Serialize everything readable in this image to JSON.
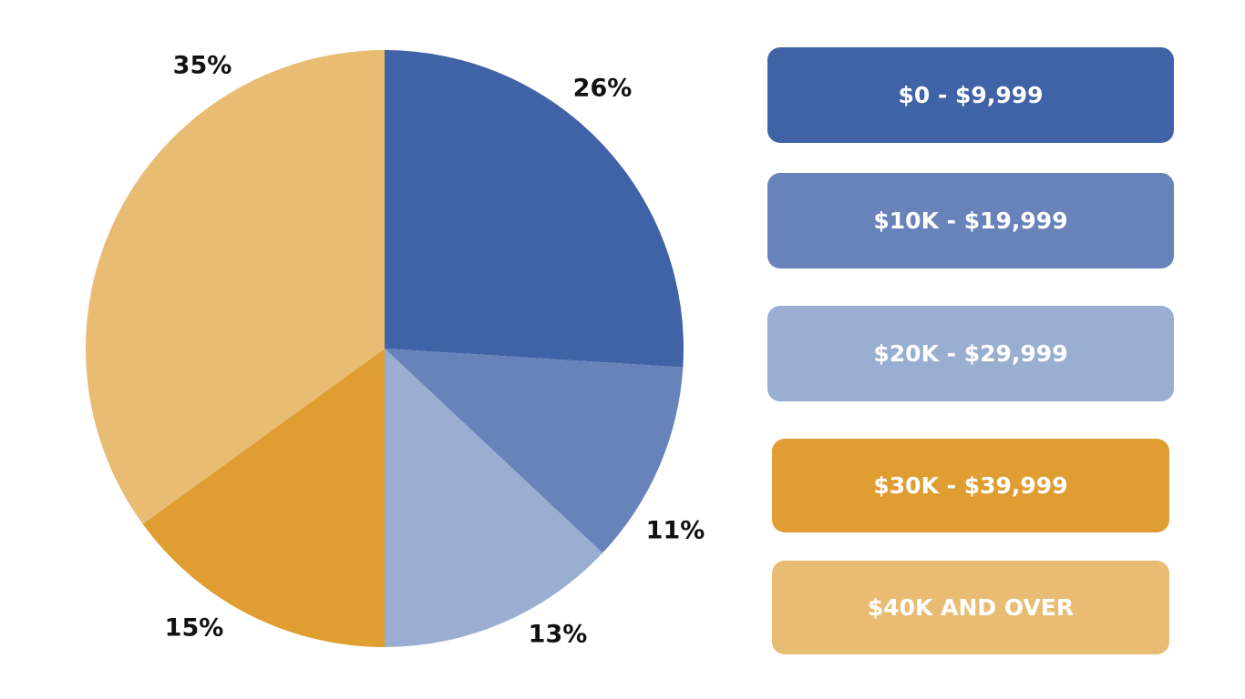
{
  "chart_data": {
    "type": "pie",
    "title": "",
    "start": "top",
    "direction": "clockwise",
    "legend_placement": "right",
    "slices": [
      {
        "label": "$0 - $9,999",
        "value": 26,
        "value_label": "26%",
        "color": "#4062a6"
      },
      {
        "label": "$10K - $19,999",
        "value": 11,
        "value_label": "11%",
        "color": "#6883ba"
      },
      {
        "label": "$20K - $29,999",
        "value": 13,
        "value_label": "13%",
        "color": "#9aaed2"
      },
      {
        "label": "$30K - $39,999",
        "value": 15,
        "value_label": "15%",
        "color": "#e09e32"
      },
      {
        "label": "$40K AND OVER",
        "value": 35,
        "value_label": "35%",
        "color": "#e9bc74"
      }
    ]
  }
}
